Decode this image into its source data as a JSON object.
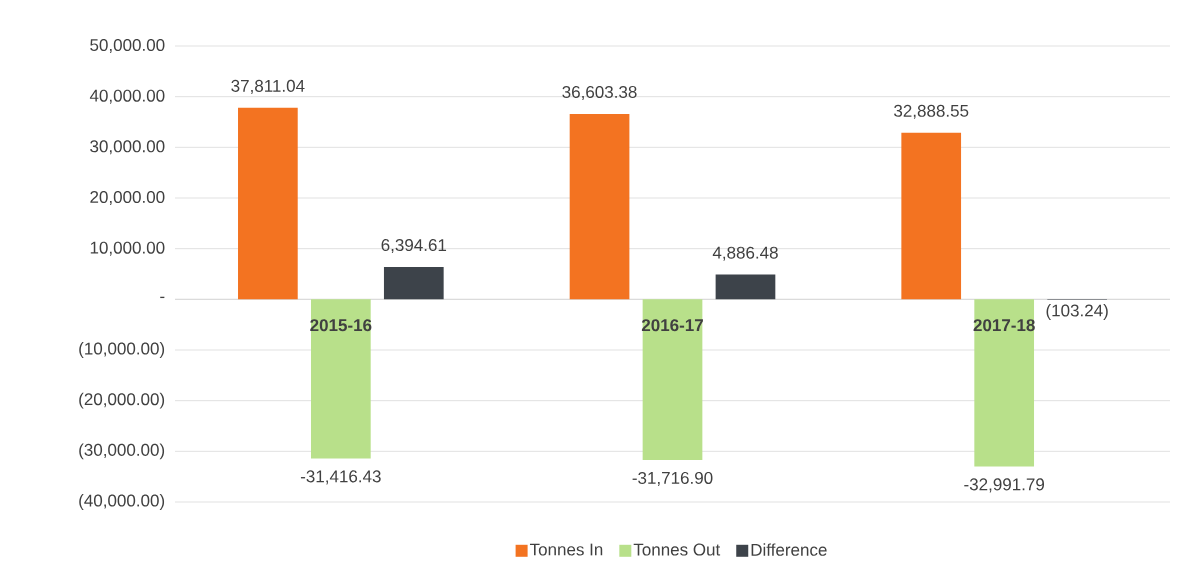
{
  "chart_data": {
    "type": "bar",
    "categories": [
      "2015-16",
      "2016-17",
      "2017-18"
    ],
    "series": [
      {
        "name": "Tonnes In",
        "color": "#f37321",
        "values": [
          37811.04,
          36603.38,
          32888.55
        ],
        "value_labels": [
          "37,811.04",
          "36,603.38",
          "32,888.55"
        ]
      },
      {
        "name": "Tonnes Out",
        "color": "#b8e08a",
        "values": [
          -31416.43,
          -31716.9,
          -32991.79
        ],
        "value_labels": [
          "-31,416.43",
          "-31,716.90",
          "-32,991.79"
        ]
      },
      {
        "name": "Difference",
        "color": "#3d434a",
        "values": [
          6394.61,
          4886.48,
          -103.24
        ],
        "value_labels": [
          "6,394.61",
          "4,886.48",
          "(103.24)"
        ]
      }
    ],
    "ylim": [
      -40000,
      50000
    ],
    "yticks": [
      {
        "value": -40000,
        "label": "(40,000.00)"
      },
      {
        "value": -30000,
        "label": "(30,000.00)"
      },
      {
        "value": -20000,
        "label": "(20,000.00)"
      },
      {
        "value": -10000,
        "label": "(10,000.00)"
      },
      {
        "value": 0,
        "label": "-"
      },
      {
        "value": 10000,
        "label": "10,000.00"
      },
      {
        "value": 20000,
        "label": "20,000.00"
      },
      {
        "value": 30000,
        "label": "30,000.00"
      },
      {
        "value": 40000,
        "label": "40,000.00"
      },
      {
        "value": 50000,
        "label": "50,000.00"
      }
    ],
    "grid": "y",
    "legend": "bottom"
  }
}
